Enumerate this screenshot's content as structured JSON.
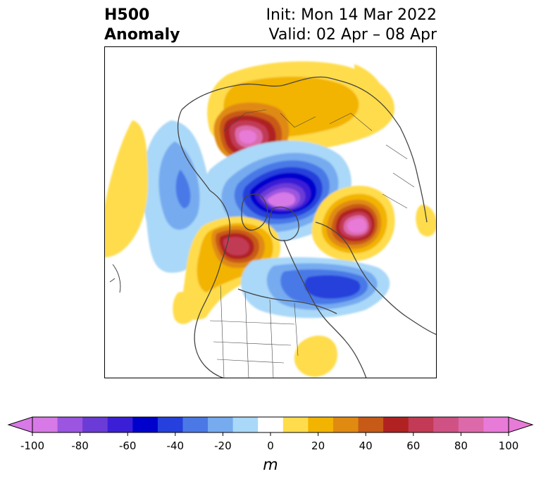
{
  "title": {
    "left_line1": "H500",
    "left_line2": "Anomaly",
    "init": "Init: Mon 14 Mar 2022",
    "valid": "Valid: 02 Apr – 08 Apr"
  },
  "map": {
    "variable": "H500 anomaly",
    "projection": "north-polar-stereographic",
    "background": "#ffffff",
    "coastline_color": "#444444",
    "features": [
      {
        "name": "ridge-north-europe-asia",
        "sign": "positive",
        "peak": 95
      },
      {
        "name": "trough-arctic-greenland",
        "sign": "negative",
        "peak": -100
      },
      {
        "name": "ridge-alaska-bering",
        "sign": "positive",
        "peak": 80
      },
      {
        "name": "ridge-western-canada",
        "sign": "positive",
        "peak": 70
      },
      {
        "name": "trough-north-atlantic",
        "sign": "negative",
        "peak": -55
      },
      {
        "name": "trough-north-pacific",
        "sign": "negative",
        "peak": -30
      },
      {
        "name": "ridge-gulf-of-mexico",
        "sign": "positive",
        "peak": 15
      }
    ]
  },
  "colorbar": {
    "unit": "m",
    "ticks": [
      "-100",
      "-80",
      "-60",
      "-40",
      "-20",
      "0",
      "20",
      "40",
      "60",
      "80",
      "100"
    ],
    "range": [
      -100,
      100
    ],
    "colors": [
      "#d779e6",
      "#9b55e0",
      "#6a3bd6",
      "#3a1fd6",
      "#0000cc",
      "#2540dc",
      "#4a79e6",
      "#76abf0",
      "#aad8f8",
      "#ffffff",
      "#ffdc4c",
      "#f2b400",
      "#e08a12",
      "#c85a18",
      "#b02222",
      "#c23a55",
      "#d05285",
      "#dc6aaa",
      "#e87ad8"
    ],
    "extend": "both"
  }
}
